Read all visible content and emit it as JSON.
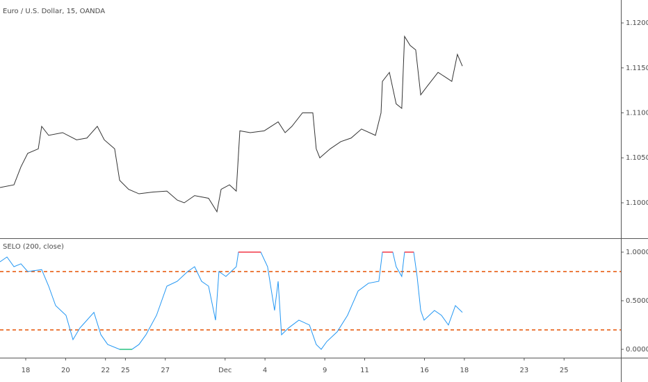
{
  "chart_data": [
    {
      "type": "line",
      "title": "Euro / U.S. Dollar, 15, OANDA",
      "x": [
        -1.29,
        -0.59,
        -0.24,
        0.1,
        0.63,
        0.8,
        1.15,
        1.85,
        2.55,
        3.07,
        3.59,
        3.94,
        4.46,
        4.71,
        5.16,
        5.68,
        6.38,
        7.08,
        7.6,
        7.95,
        8.47,
        9.17,
        9.59,
        9.8,
        10.22,
        10.56,
        10.74,
        11.26,
        11.96,
        12.66,
        13.01,
        13.35,
        13.88,
        14.4,
        14.57,
        14.75,
        15.27,
        15.8,
        16.32,
        16.84,
        17.54,
        17.82,
        17.89,
        18.24,
        18.58,
        18.86,
        19.0,
        19.28,
        19.56,
        19.81,
        20.15,
        20.68,
        21.03,
        21.37,
        21.65,
        21.9
      ],
      "series": [
        {
          "name": "Euro / U.S. Dollar",
          "color": "#333333",
          "values": [
            1.1017,
            1.102,
            1.104,
            1.1055,
            1.106,
            1.1085,
            1.1075,
            1.1078,
            1.107,
            1.1072,
            1.1085,
            1.107,
            1.106,
            1.1025,
            1.1015,
            1.101,
            1.1012,
            1.1013,
            1.1003,
            1.1,
            1.1008,
            1.1005,
            1.099,
            1.1015,
            1.102,
            1.1013,
            1.108,
            1.1078,
            1.108,
            1.109,
            1.1078,
            1.1085,
            1.11,
            1.11,
            1.106,
            1.105,
            1.106,
            1.1068,
            1.1072,
            1.1082,
            1.1075,
            1.11,
            1.1135,
            1.1145,
            1.111,
            1.1105,
            1.1185,
            1.1175,
            1.117,
            1.112,
            1.113,
            1.1145,
            1.114,
            1.1135,
            1.1165,
            1.1152
          ]
        }
      ],
      "xlim": [
        -1.29,
        29.85
      ],
      "ylim": [
        1.09606,
        1.12255
      ],
      "yticks": [
        {
          "value": 1.1,
          "label": "1.10000"
        },
        {
          "value": 1.105,
          "label": "1.10500"
        },
        {
          "value": 1.11,
          "label": "1.11000"
        },
        {
          "value": 1.115,
          "label": "1.11500"
        },
        {
          "value": 1.12,
          "label": "1.12000"
        }
      ]
    },
    {
      "type": "line",
      "title": "SELO (200, close)",
      "x": [
        -1.29,
        -0.94,
        -0.59,
        -0.24,
        0.1,
        0.8,
        1.15,
        1.5,
        2.02,
        2.37,
        2.72,
        3.07,
        3.42,
        3.77,
        4.11,
        4.71,
        5.33,
        5.68,
        6.03,
        6.56,
        7.08,
        7.6,
        8.12,
        8.47,
        8.82,
        9.17,
        9.52,
        9.69,
        10.04,
        10.56,
        10.67,
        11.79,
        12.13,
        12.48,
        12.66,
        12.83,
        13.18,
        13.7,
        14.23,
        14.57,
        14.82,
        15.1,
        15.62,
        16.14,
        16.67,
        17.19,
        17.71,
        17.89,
        18.41,
        18.58,
        18.86,
        19.0,
        19.46,
        19.63,
        19.81,
        19.98,
        20.5,
        20.85,
        21.2,
        21.55,
        21.9
      ],
      "series": [
        {
          "name": "SELO",
          "color": "#2196f3",
          "values": [
            0.9,
            0.95,
            0.85,
            0.88,
            0.8,
            0.82,
            0.65,
            0.45,
            0.35,
            0.1,
            0.22,
            0.3,
            0.38,
            0.15,
            0.05,
            0.0,
            0.0,
            0.05,
            0.15,
            0.35,
            0.65,
            0.7,
            0.8,
            0.85,
            0.7,
            0.65,
            0.3,
            0.8,
            0.75,
            0.85,
            1.0,
            1.0,
            0.85,
            0.4,
            0.7,
            0.15,
            0.22,
            0.3,
            0.25,
            0.05,
            0.0,
            0.08,
            0.18,
            0.35,
            0.6,
            0.68,
            0.7,
            1.0,
            1.0,
            0.85,
            0.75,
            1.0,
            1.0,
            0.75,
            0.4,
            0.3,
            0.4,
            0.35,
            0.25,
            0.45,
            0.38
          ]
        }
      ],
      "top_color": "#f23645",
      "bottom_color": "#26c281",
      "hlines": [
        0.8,
        0.2
      ],
      "hline_color": "#e65100",
      "xlim": [
        -1.29,
        29.85
      ],
      "ylim": [
        -0.086,
        1.143
      ],
      "yticks": [
        {
          "value": 0,
          "label": "0.00000"
        },
        {
          "value": 0.5,
          "label": "0.50000"
        },
        {
          "value": 1,
          "label": "1.00000"
        }
      ],
      "xticks": [
        {
          "value": 0,
          "label": "18"
        },
        {
          "value": 2,
          "label": "20"
        },
        {
          "value": 4,
          "label": "22"
        },
        {
          "value": 5,
          "label": "25"
        },
        {
          "value": 7,
          "label": "27"
        },
        {
          "value": 10,
          "label": "Dec"
        },
        {
          "value": 12,
          "label": "4"
        },
        {
          "value": 15,
          "label": "9"
        },
        {
          "value": 17,
          "label": "11"
        },
        {
          "value": 20,
          "label": "16"
        },
        {
          "value": 22,
          "label": "18"
        },
        {
          "value": 25,
          "label": "23"
        },
        {
          "value": 27,
          "label": "25"
        }
      ]
    }
  ]
}
